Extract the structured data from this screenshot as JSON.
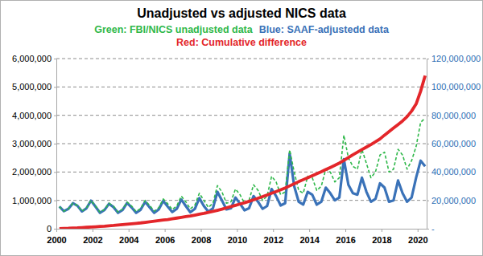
{
  "chart_data": {
    "type": "line",
    "title": "Unadjusted vs adjusted NICS data",
    "legend": "top",
    "grid": true,
    "xlim": [
      2000,
      2020.5
    ],
    "xticks": [
      2000,
      2002,
      2004,
      2006,
      2008,
      2010,
      2012,
      2014,
      2016,
      2018,
      2020
    ],
    "ylim": [
      0,
      6000000
    ],
    "yticks": [
      0,
      {
        "value": 1000000,
        "label": "1,000,000"
      },
      {
        "value": 2000000,
        "label": "2,000,000"
      },
      {
        "value": 3000000,
        "label": "3,000,000"
      },
      {
        "value": 4000000,
        "label": "4,000,000"
      },
      {
        "value": 5000000,
        "label": "5,000,000"
      },
      {
        "value": 6000000,
        "label": "6,000,000"
      }
    ],
    "y2lim": [
      0,
      120000000
    ],
    "y2ticks": [
      {
        "value": 0,
        "label": "-"
      },
      {
        "value": 20000000,
        "label": "20,000,000"
      },
      {
        "value": 40000000,
        "label": "40,000,000"
      },
      {
        "value": 60000000,
        "label": "60,000,000"
      },
      {
        "value": 80000000,
        "label": "80,000,000"
      },
      {
        "value": 100000000,
        "label": "100,000,000"
      },
      {
        "value": 120000000,
        "label": "120,000,000"
      }
    ],
    "x": [
      2000.167,
      2000.417,
      2000.667,
      2000.917,
      2001.167,
      2001.417,
      2001.667,
      2001.917,
      2002.167,
      2002.417,
      2002.667,
      2002.917,
      2003.167,
      2003.417,
      2003.667,
      2003.917,
      2004.167,
      2004.417,
      2004.667,
      2004.917,
      2005.167,
      2005.417,
      2005.667,
      2005.917,
      2006.167,
      2006.417,
      2006.667,
      2006.917,
      2007.167,
      2007.417,
      2007.667,
      2007.917,
      2008.167,
      2008.417,
      2008.667,
      2008.917,
      2009.167,
      2009.417,
      2009.667,
      2009.917,
      2010.167,
      2010.417,
      2010.667,
      2010.917,
      2011.167,
      2011.417,
      2011.667,
      2011.917,
      2012.167,
      2012.417,
      2012.667,
      2012.917,
      2013.167,
      2013.417,
      2013.667,
      2013.917,
      2014.167,
      2014.417,
      2014.667,
      2014.917,
      2015.167,
      2015.417,
      2015.667,
      2015.917,
      2016.167,
      2016.417,
      2016.667,
      2016.917,
      2017.167,
      2017.417,
      2017.667,
      2017.917,
      2018.167,
      2018.417,
      2018.667,
      2018.917,
      2019.167,
      2019.417,
      2019.667,
      2019.917,
      2020.167,
      2020.417
    ],
    "series": [
      {
        "name": "Green: FBI/NICS unadjusted data",
        "color": "#2fb84a",
        "line_style": "dashed",
        "values": [
          780000,
          620000,
          700000,
          900000,
          820000,
          620000,
          730000,
          1000000,
          800000,
          580000,
          680000,
          900000,
          790000,
          590000,
          690000,
          940000,
          800000,
          600000,
          720000,
          1000000,
          820000,
          620000,
          740000,
          1050000,
          880000,
          680000,
          800000,
          1150000,
          950000,
          700000,
          830000,
          1250000,
          1000000,
          750000,
          900000,
          1520000,
          1300000,
          900000,
          950000,
          1400000,
          1200000,
          900000,
          1000000,
          1550000,
          1350000,
          1000000,
          1150000,
          1850000,
          1650000,
          1200000,
          1300000,
          2780000,
          2000000,
          1350000,
          1250000,
          1850000,
          1800000,
          1350000,
          1500000,
          2100000,
          2000000,
          1650000,
          1800000,
          3300000,
          2500000,
          2200000,
          2100000,
          2800000,
          2300000,
          1800000,
          2000000,
          2600000,
          2700000,
          2000000,
          2100000,
          2800000,
          2600000,
          2100000,
          2400000,
          2900000,
          3750000,
          3900000
        ]
      },
      {
        "name": "Blue: SAAF-adjustedd data",
        "color": "#3a72b8",
        "line_style": "solid",
        "values": [
          780000,
          620000,
          700000,
          900000,
          810000,
          610000,
          720000,
          990000,
          780000,
          560000,
          660000,
          880000,
          760000,
          560000,
          660000,
          910000,
          750000,
          560000,
          670000,
          950000,
          750000,
          560000,
          680000,
          980000,
          780000,
          590000,
          700000,
          1030000,
          800000,
          580000,
          700000,
          1080000,
          800000,
          600000,
          720000,
          1300000,
          1000000,
          680000,
          720000,
          1100000,
          880000,
          650000,
          720000,
          1150000,
          950000,
          700000,
          800000,
          1400000,
          1150000,
          820000,
          900000,
          2650000,
          1500000,
          950000,
          850000,
          1300000,
          1200000,
          850000,
          950000,
          1450000,
          1250000,
          1000000,
          1100000,
          2450000,
          1550000,
          1250000,
          1200000,
          1800000,
          1300000,
          950000,
          1050000,
          1600000,
          1450000,
          950000,
          1000000,
          1700000,
          1250000,
          950000,
          1100000,
          1800000,
          2400000,
          2200000
        ]
      },
      {
        "name": "Red: Cumulative difference",
        "color": "#e3262a",
        "line_style": "solid",
        "axis": "y2",
        "values": [
          100000,
          200000,
          300000,
          500000,
          600000,
          800000,
          1000000,
          1200000,
          1400000,
          1600000,
          1800000,
          2100000,
          2300000,
          2600000,
          2900000,
          3200000,
          3500000,
          3800000,
          4100000,
          4500000,
          4900000,
          5300000,
          5700000,
          6100000,
          6500000,
          7000000,
          7500000,
          8000000,
          8500000,
          9000000,
          9600000,
          10200000,
          10800000,
          11500000,
          12200000,
          13000000,
          13800000,
          14700000,
          15600000,
          16500000,
          17400000,
          18300000,
          19300000,
          20400000,
          21500000,
          22600000,
          23800000,
          25000000,
          26200000,
          27400000,
          28700000,
          30200000,
          31700000,
          33200000,
          34600000,
          36000000,
          37400000,
          38800000,
          40200000,
          41700000,
          43200000,
          44700000,
          46300000,
          48200000,
          50200000,
          52200000,
          54000000,
          55800000,
          57600000,
          59400000,
          61300000,
          63300000,
          66000000,
          68500000,
          71000000,
          73500000,
          76000000,
          79000000,
          83000000,
          88000000,
          97000000,
          108000000
        ]
      }
    ]
  }
}
